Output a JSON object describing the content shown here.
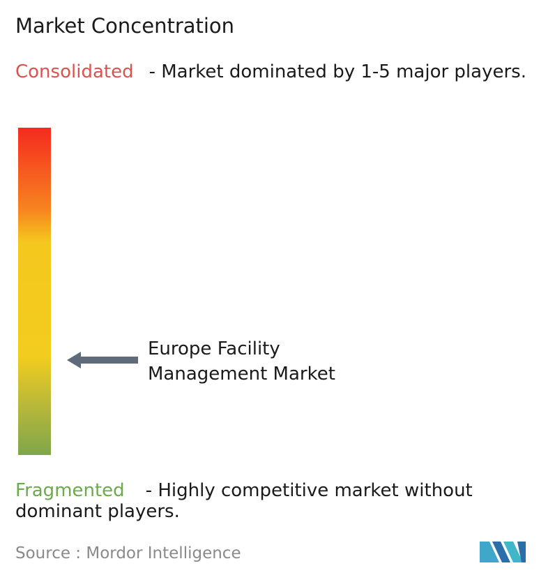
{
  "title": "Market Concentration",
  "consolidated": {
    "label": "Consolidated",
    "description": "- Market dominated by 1-5 major players."
  },
  "fragmented": {
    "label": "Fragmented",
    "description": "- Highly competitive market without dominant players."
  },
  "market": {
    "lines": [
      "Europe Facility",
      "Management Market"
    ]
  },
  "source": "Source :  Mordor Intelligence"
}
